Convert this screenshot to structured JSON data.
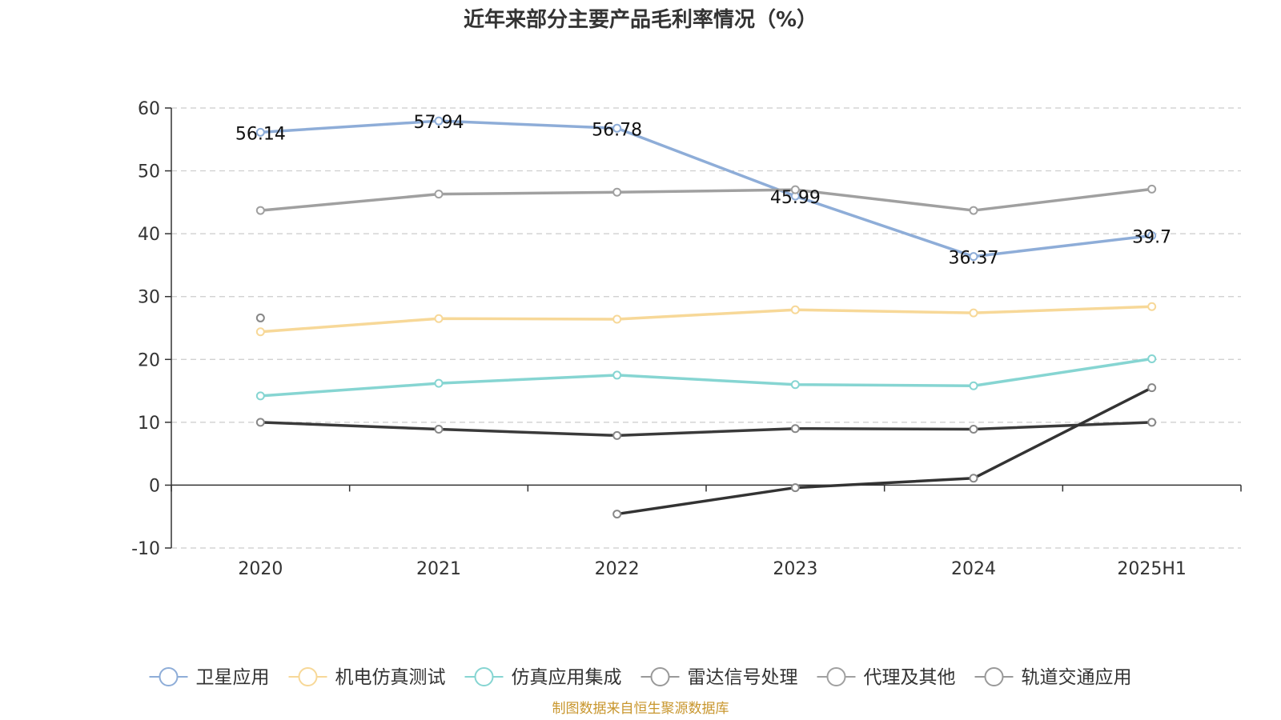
{
  "chart_data": {
    "type": "line",
    "title": "近年来部分主要产品毛利率情况（%）",
    "categories": [
      "2020",
      "2021",
      "2022",
      "2023",
      "2024",
      "2025H1"
    ],
    "ylim": [
      -10,
      60
    ],
    "yticks": [
      -10,
      0,
      10,
      20,
      30,
      40,
      50,
      60
    ],
    "grid": true,
    "legend_position": "bottom",
    "series": [
      {
        "name": "卫星应用",
        "color": "#8eadd8",
        "values": [
          56.14,
          57.94,
          56.78,
          45.99,
          36.37,
          39.7
        ],
        "show_labels": true
      },
      {
        "name": "机电仿真测试",
        "color": "#f7d898",
        "values": [
          24.4,
          26.5,
          26.4,
          27.9,
          27.4,
          28.4
        ],
        "show_labels": false
      },
      {
        "name": "仿真应用集成",
        "color": "#86d5d2",
        "values": [
          14.2,
          16.2,
          17.5,
          16.0,
          15.8,
          20.1
        ],
        "show_labels": false
      },
      {
        "name": "雷达信号处理",
        "color": "#3a3a3a",
        "values": [
          10.0,
          8.9,
          7.9,
          9.0,
          8.9,
          10.0
        ],
        "show_labels": false
      },
      {
        "name": "代理及其他",
        "color": "#a0a0a0",
        "values": [
          43.7,
          46.3,
          46.6,
          47.0,
          43.7,
          47.1
        ],
        "show_labels": false
      },
      {
        "name": "轨道交通应用",
        "color": "#333333",
        "values": [
          26.6,
          null,
          -4.6,
          -0.4,
          1.1,
          15.5
        ],
        "show_labels": false
      }
    ]
  },
  "source_note": "制图数据来自恒生聚源数据库"
}
